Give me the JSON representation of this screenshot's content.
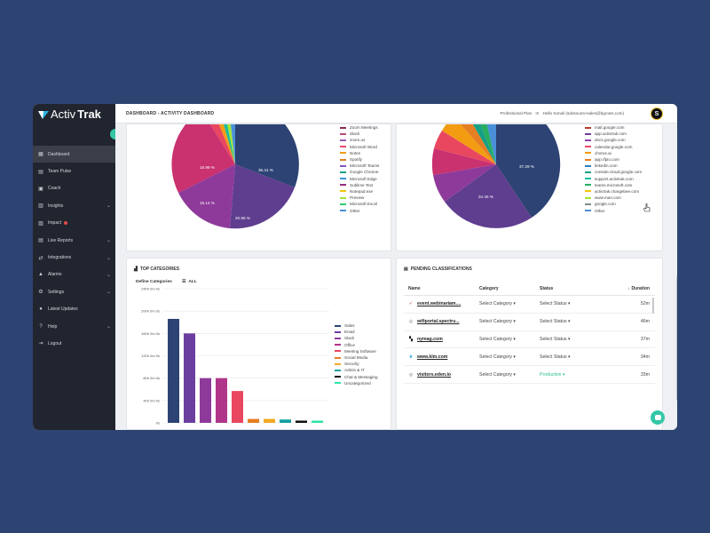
{
  "app": {
    "logo_text_a": "Activ",
    "logo_text_b": "Trak"
  },
  "sidebar": {
    "items": [
      {
        "label": "Dashboard",
        "icon": "grid-icon",
        "active": true,
        "chevron": false
      },
      {
        "label": "Team Pulse",
        "icon": "pulse-icon",
        "chevron": false
      },
      {
        "label": "Coach",
        "icon": "coach-icon",
        "chevron": false
      },
      {
        "label": "Insights",
        "icon": "lightbulb-icon",
        "chevron": true
      },
      {
        "label": "Impact",
        "icon": "chart-icon",
        "chevron": false,
        "badge": true
      },
      {
        "label": "Live Reports",
        "icon": "reports-icon",
        "chevron": true
      },
      {
        "label": "Integrations",
        "icon": "integrations-icon",
        "chevron": true
      },
      {
        "label": "Alarms",
        "icon": "alarm-icon",
        "chevron": true
      },
      {
        "label": "Settings",
        "icon": "gear-icon",
        "chevron": true
      },
      {
        "label": "Latest Updates",
        "icon": "info-icon",
        "chevron": false
      },
      {
        "label": "Help",
        "icon": "help-icon",
        "chevron": true
      },
      {
        "label": "Logout",
        "icon": "logout-icon",
        "chevron": false
      }
    ]
  },
  "header": {
    "breadcrumb": "DASHBOARD - ACTIVITY DASHBOARD",
    "plan": "Professional Plan",
    "greeting": "Hello Sonali (sdesouza+sales@bgrows.com)",
    "avatar_letter": "S"
  },
  "top_left_pie": {
    "legend": [
      "Zoom Meetings",
      "Slack",
      "zoom.us",
      "Microsoft Word",
      "Notes",
      "Spotify",
      "Microsoft Teams",
      "Google Chrome",
      "Microsoft Edge",
      "Sublime Text",
      "Notepad.exe",
      "Preview",
      "Microsoft Excel",
      "Other"
    ],
    "legend_colors": [
      "#8b2b4c",
      "#b84a7a",
      "#9b59b6",
      "#e94b6b",
      "#f39c12",
      "#e67e22",
      "#7e57c2",
      "#16a085",
      "#3498db",
      "#9b2c7f",
      "#f1c40f",
      "#a3e635",
      "#2ecc71",
      "#4a90d9"
    ],
    "labels": [
      "35.41 %",
      "20.86 %",
      "15.14 %",
      "16.99 %"
    ]
  },
  "top_right_pie": {
    "legend": [
      "mail.google.com",
      "app.activtrak.com",
      "docs.google.com",
      "calendar.google.com",
      "chorus.ai",
      "app.rfpio.com",
      "linkedin.com",
      "console.cloud.google.com",
      "support.activtrak.com",
      "teams.microsoft.com",
      "activtrak.chargebee.com",
      "www.man.com",
      "google.com",
      "Other"
    ],
    "legend_colors": [
      "#c0392b",
      "#6b3fa0",
      "#8e44ad",
      "#e94b6b",
      "#f39c12",
      "#e67e22",
      "#2980b9",
      "#16a085",
      "#1abc9c",
      "#27ae60",
      "#f1c40f",
      "#a3e635",
      "#7f8c8d",
      "#4a90d9"
    ],
    "labels": [
      "37.29 %",
      "34.45 %"
    ]
  },
  "top_categories": {
    "title": "TOP CATEGORIES",
    "define_label": "Define Categories",
    "filter_label": "ALL",
    "legend": [
      "Sales",
      "Email",
      "Slack",
      "Office",
      "Meeting Software",
      "Social Media",
      "Security",
      "Admin & IT",
      "Chat & Messaging",
      "Uncategorized"
    ],
    "legend_colors": [
      "#2d4374",
      "#6b3fa0",
      "#8e3a9a",
      "#b0368a",
      "#e8475f",
      "#e67e22",
      "#f1a821",
      "#16a0a0",
      "#111111",
      "#2ee6a8"
    ]
  },
  "chart_data": {
    "type": "bar",
    "categories": [
      "Sales",
      "Email",
      "Slack",
      "Office",
      "Meeting Software",
      "Social Media",
      "Security",
      "Admin & IT",
      "Chat & Messaging",
      "Uncategorized"
    ],
    "values": [
      186,
      160,
      80,
      80,
      57,
      7,
      7,
      6,
      4,
      4
    ],
    "y_ticks": [
      "240h 0m 0s",
      "200h 0m 0s",
      "160h 0m 0s",
      "120h 0m 0s",
      "80h 0m 0s",
      "40h 0m 0s",
      "0s"
    ],
    "ylim": [
      0,
      240
    ],
    "grid": true,
    "legend_placement": "right"
  },
  "pending": {
    "title": "PENDING CLASSIFICATIONS",
    "headers": {
      "name": "Name",
      "category": "Category",
      "status": "Status",
      "duration": "Duration"
    },
    "rows": [
      {
        "name": "event.webinariam....",
        "category": "Select Category",
        "status": "Select Status",
        "duration": "52m",
        "icon": "check-circle-icon"
      },
      {
        "name": "wifiportal.spectru...",
        "category": "Select Category",
        "status": "Select Status",
        "duration": "46m",
        "icon": "globe-icon"
      },
      {
        "name": "nymag.com",
        "category": "Select Category",
        "status": "Select Status",
        "duration": "37m",
        "icon": "nymag-icon"
      },
      {
        "name": "www.klm.com",
        "category": "Select Category",
        "status": "Select Status",
        "duration": "34m",
        "icon": "klm-icon"
      },
      {
        "name": "visitors.eden.io",
        "category": "Select Category",
        "status": "Productive",
        "duration": "33m",
        "icon": "globe-icon"
      }
    ]
  }
}
